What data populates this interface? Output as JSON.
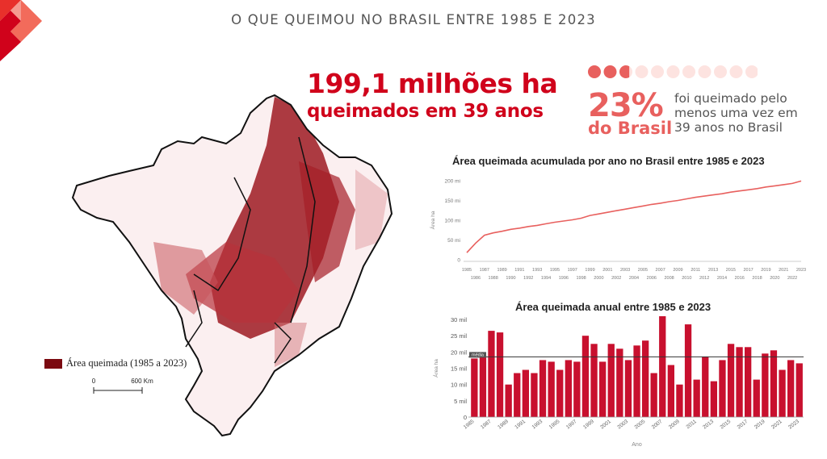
{
  "page": {
    "title": "O QUE QUEIMOU NO BRASIL ENTRE 1985 E 2023",
    "headline_big": "199,1 milhões ha",
    "headline_sub": "queimados em 39 anos",
    "percent_value": "23%",
    "percent_label": "do Brasil",
    "percent_desc": "foi queimado pelo menos uma vez em 39 anos no Brasil",
    "percent_fraction": 0.23,
    "accent_color": "#d0021b",
    "soft_color": "#e8605e"
  },
  "map": {
    "legend_label": "Área queimada (1985 a 2023)",
    "scale_min": "0",
    "scale_max": "600 Km",
    "fill_color": "#8a0f18"
  },
  "chart_data": [
    {
      "type": "line",
      "title": "Área queimada acumulada por ano no Brasil entre 1985 e 2023",
      "ylabel": "Área ha",
      "xlabel": "",
      "ylim": [
        0,
        200
      ],
      "yticks": [
        "0",
        "50 mi",
        "100 mi",
        "150 mi",
        "200 mi"
      ],
      "x": [
        1985,
        1986,
        1987,
        1988,
        1989,
        1990,
        1991,
        1992,
        1993,
        1994,
        1995,
        1996,
        1997,
        1998,
        1999,
        2000,
        2001,
        2002,
        2003,
        2004,
        2005,
        2006,
        2007,
        2008,
        2009,
        2010,
        2011,
        2012,
        2013,
        2014,
        2015,
        2016,
        2017,
        2018,
        2019,
        2020,
        2021,
        2022,
        2023
      ],
      "values": [
        18,
        42,
        62,
        68,
        72,
        77,
        80,
        84,
        87,
        91,
        95,
        98,
        101,
        105,
        112,
        116,
        120,
        124,
        128,
        132,
        136,
        140,
        143,
        147,
        150,
        154,
        158,
        161,
        164,
        167,
        171,
        174,
        177,
        180,
        184,
        187,
        190,
        193,
        199.1
      ],
      "grid": false,
      "color": "#e8605e"
    },
    {
      "type": "bar",
      "title": "Área queimada anual entre 1985 e 2023",
      "ylabel": "Área ha",
      "xlabel": "Ano",
      "ylim": [
        0,
        30
      ],
      "yticks": [
        "0",
        "5 mil",
        "10 mil",
        "15 mil",
        "20 mil",
        "25 mil",
        "30 mil"
      ],
      "xticklabels": [
        "1985",
        "1987",
        "1989",
        "1991",
        "1993",
        "1995",
        "1997",
        "1999",
        "2001",
        "2003",
        "2005",
        "2007",
        "2009",
        "2011",
        "2013",
        "2015",
        "2017",
        "2019",
        "2021",
        "2023"
      ],
      "categories": [
        1985,
        1986,
        1987,
        1988,
        1989,
        1990,
        1991,
        1992,
        1993,
        1994,
        1995,
        1996,
        1997,
        1998,
        1999,
        2000,
        2001,
        2002,
        2003,
        2004,
        2005,
        2006,
        2007,
        2008,
        2009,
        2010,
        2011,
        2012,
        2013,
        2014,
        2015,
        2016,
        2017,
        2018,
        2019,
        2020,
        2021,
        2022,
        2023
      ],
      "values": [
        18,
        19,
        26.5,
        26,
        10,
        13.5,
        14.5,
        13.5,
        17.5,
        17,
        14.5,
        17.5,
        17,
        25,
        22.5,
        17,
        22.5,
        21,
        17.5,
        22,
        23.5,
        13.5,
        31,
        16,
        10,
        28.5,
        11.5,
        18.5,
        11,
        17.5,
        22.5,
        21.5,
        21.5,
        11.5,
        19.5,
        20.5,
        14.5,
        17.5,
        16.5
      ],
      "mean_label": "média",
      "mean_value": 18.5,
      "grid": false,
      "color": "#c8102e"
    }
  ]
}
